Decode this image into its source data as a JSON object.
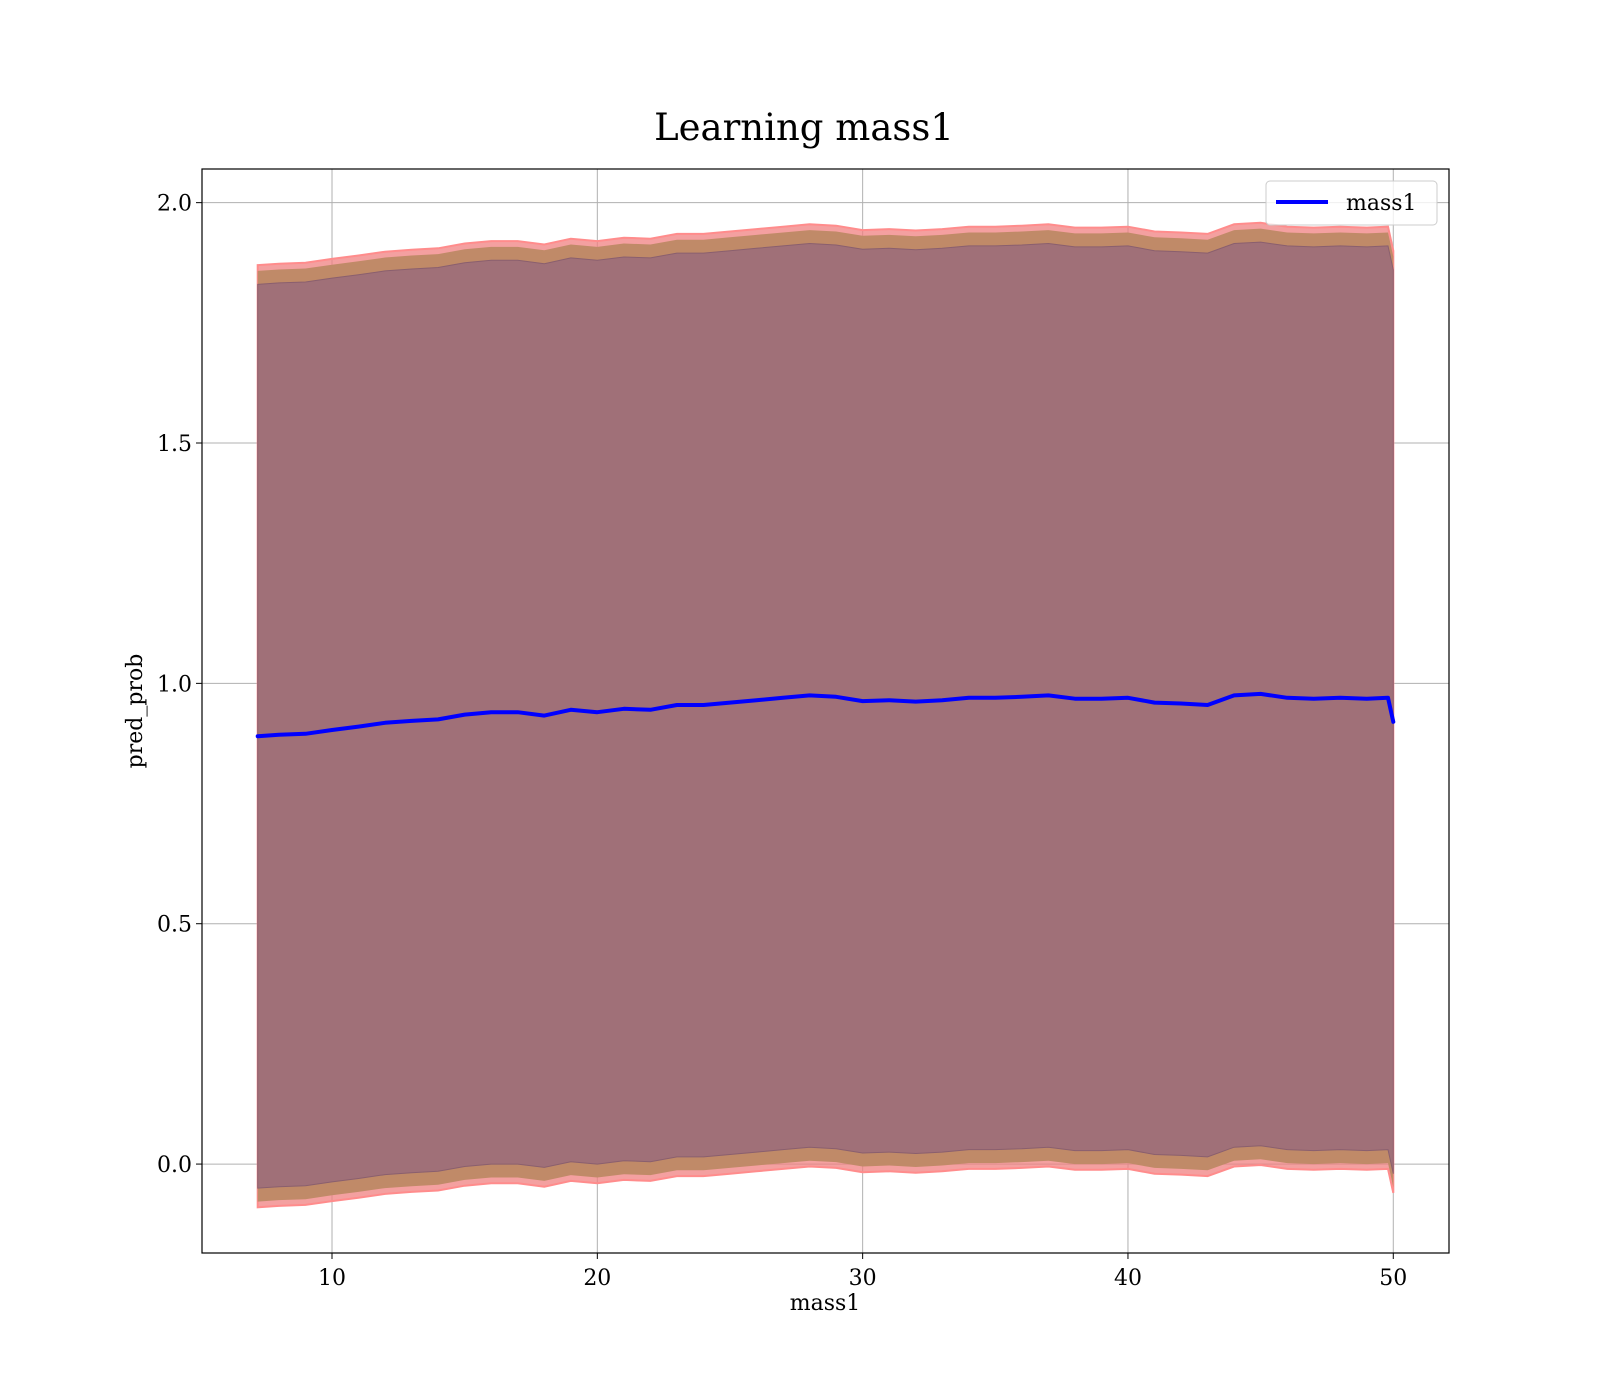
{
  "chart_data": {
    "type": "line",
    "title": "Learning mass1",
    "xlabel": "mass1",
    "ylabel": "pred_prob",
    "xlim": [
      5.1,
      52.1
    ],
    "ylim": [
      -0.185,
      2.07
    ],
    "xticks": [
      "10",
      "20",
      "30",
      "40",
      "50"
    ],
    "yticks": [
      "0.0",
      "0.5",
      "1.0",
      "1.5",
      "2.0"
    ],
    "grid": true,
    "legend": {
      "position": "top-right",
      "entries": [
        "mass1"
      ]
    },
    "colors": {
      "line": "#0000ff",
      "band_outer": "#f08080",
      "band_outer_edge": "#ff8c8c",
      "band_mid": "#c08a68",
      "band_inner": "#a07078",
      "band_inner_edge": "#8a5f6e"
    },
    "series": [
      {
        "name": "mass1",
        "x": [
          7.2,
          8,
          9,
          10,
          11,
          12,
          13,
          14,
          15,
          16,
          17,
          18,
          19,
          20,
          21,
          22,
          23,
          24,
          25,
          26,
          27,
          28,
          29,
          30,
          31,
          32,
          33,
          34,
          35,
          36,
          37,
          38,
          39,
          40,
          41,
          42,
          43,
          44,
          45,
          46,
          47,
          48,
          49,
          49.8,
          50
        ],
        "y": [
          0.89,
          0.893,
          0.895,
          0.903,
          0.91,
          0.918,
          0.922,
          0.925,
          0.935,
          0.94,
          0.94,
          0.933,
          0.945,
          0.94,
          0.947,
          0.945,
          0.955,
          0.955,
          0.96,
          0.965,
          0.97,
          0.975,
          0.972,
          0.963,
          0.965,
          0.962,
          0.965,
          0.97,
          0.97,
          0.972,
          0.975,
          0.968,
          0.968,
          0.97,
          0.96,
          0.958,
          0.955,
          0.975,
          0.978,
          0.97,
          0.968,
          0.97,
          0.968,
          0.97,
          0.92
        ]
      }
    ],
    "bands": {
      "x": [
        7.2,
        8,
        9,
        10,
        11,
        12,
        13,
        14,
        15,
        16,
        17,
        18,
        19,
        20,
        21,
        22,
        23,
        24,
        25,
        26,
        27,
        28,
        29,
        30,
        31,
        32,
        33,
        34,
        35,
        36,
        37,
        38,
        39,
        40,
        41,
        42,
        43,
        44,
        45,
        46,
        47,
        48,
        49,
        49.8,
        50
      ],
      "outer_upper": [
        1.87,
        1.873,
        1.875,
        1.883,
        1.89,
        1.898,
        1.902,
        1.905,
        1.915,
        1.92,
        1.92,
        1.913,
        1.925,
        1.92,
        1.927,
        1.925,
        1.935,
        1.935,
        1.94,
        1.945,
        1.95,
        1.955,
        1.952,
        1.943,
        1.945,
        1.942,
        1.945,
        1.95,
        1.95,
        1.952,
        1.955,
        1.948,
        1.948,
        1.95,
        1.94,
        1.938,
        1.935,
        1.955,
        1.958,
        1.95,
        1.948,
        1.95,
        1.948,
        1.95,
        1.9
      ],
      "outer_lower": [
        -0.09,
        -0.087,
        -0.085,
        -0.077,
        -0.07,
        -0.062,
        -0.058,
        -0.055,
        -0.045,
        -0.04,
        -0.04,
        -0.047,
        -0.035,
        -0.04,
        -0.033,
        -0.035,
        -0.025,
        -0.025,
        -0.02,
        -0.015,
        -0.01,
        -0.005,
        -0.008,
        -0.017,
        -0.015,
        -0.018,
        -0.015,
        -0.01,
        -0.01,
        -0.008,
        -0.005,
        -0.012,
        -0.012,
        -0.01,
        -0.02,
        -0.022,
        -0.025,
        -0.005,
        -0.002,
        -0.01,
        -0.012,
        -0.01,
        -0.012,
        -0.01,
        -0.06
      ],
      "inner_upper": [
        1.83,
        1.833,
        1.835,
        1.843,
        1.85,
        1.858,
        1.862,
        1.865,
        1.875,
        1.88,
        1.88,
        1.873,
        1.885,
        1.88,
        1.887,
        1.885,
        1.895,
        1.895,
        1.9,
        1.905,
        1.91,
        1.915,
        1.912,
        1.903,
        1.905,
        1.902,
        1.905,
        1.91,
        1.91,
        1.912,
        1.915,
        1.908,
        1.908,
        1.91,
        1.9,
        1.898,
        1.895,
        1.915,
        1.918,
        1.91,
        1.908,
        1.91,
        1.908,
        1.91,
        1.86
      ],
      "inner_lower": [
        -0.05,
        -0.047,
        -0.045,
        -0.037,
        -0.03,
        -0.022,
        -0.018,
        -0.015,
        -0.005,
        0.0,
        0.0,
        -0.007,
        0.005,
        0.0,
        0.007,
        0.005,
        0.015,
        0.015,
        0.02,
        0.025,
        0.03,
        0.035,
        0.032,
        0.023,
        0.025,
        0.022,
        0.025,
        0.03,
        0.03,
        0.032,
        0.035,
        0.028,
        0.028,
        0.03,
        0.02,
        0.018,
        0.015,
        0.035,
        0.038,
        0.03,
        0.028,
        0.03,
        0.028,
        0.03,
        -0.02
      ]
    }
  }
}
